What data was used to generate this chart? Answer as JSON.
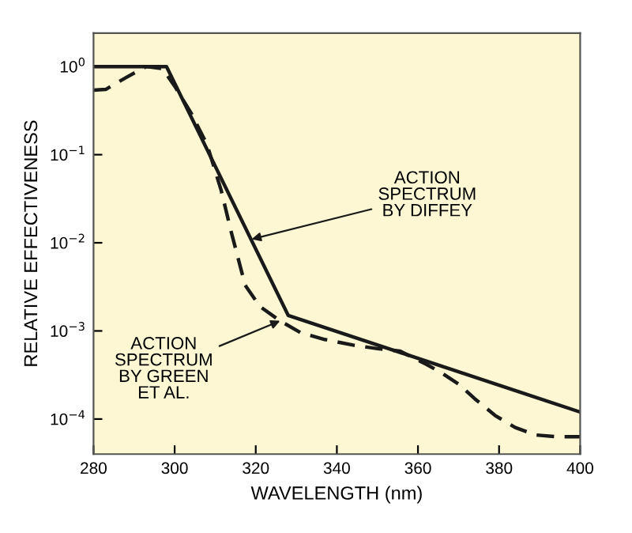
{
  "chart_data": {
    "type": "line",
    "xlabel": "WAVELENGTH (nm)",
    "ylabel": "RELATIVE EFFECTIVENESS",
    "series": [
      {
        "color": "#1a1a1a",
        "line_style": "solid",
        "x": [
          280,
          298,
          328,
          400
        ],
        "values": [
          1,
          1,
          0.0015,
          0.00012
        ]
      },
      {
        "color": "#1a1a1a",
        "line_style": "dashed",
        "x": [
          280,
          283,
          288,
          293,
          297,
          300,
          304,
          308,
          311.5,
          314,
          317.4,
          321,
          326,
          331,
          337,
          344,
          350,
          355.6,
          362,
          366,
          370,
          374,
          379,
          384,
          389,
          394,
          400
        ],
        "values": [
          0.54,
          0.55,
          0.75,
          1,
          0.95,
          0.6,
          0.3,
          0.13,
          0.039,
          0.013,
          0.0033,
          0.0019,
          0.0013,
          0.00096,
          0.0008,
          0.00069,
          0.00063,
          0.00059,
          0.00042,
          0.00033,
          0.00025,
          0.00017,
          0.00011,
          8e-05,
          6.6e-05,
          6.3e-05,
          6.3e-05
        ]
      }
    ],
    "annotations": [
      {
        "text": "ACTION\nSPECTRUM\nBY DIFFEY",
        "x": 319,
        "y": 0.011
      },
      {
        "text": "ACTION\nSPECTRUM\nBY GREEN\nET AL.",
        "x": 326,
        "y": 0.0013
      }
    ],
    "xlim": [
      280,
      400
    ],
    "xticks": [
      280,
      300,
      320,
      340,
      360,
      380,
      400
    ],
    "log": "y",
    "ylim": [
      4e-05,
      2.4
    ],
    "yticks": [
      {
        "value": 1,
        "label": "10$^{0}$"
      },
      {
        "value": 0.1,
        "label": "10$^{−1}$"
      },
      {
        "value": 0.01,
        "label": "10$^{−2}$"
      },
      {
        "value": 0.001,
        "label": "10$^{−3}$"
      },
      {
        "value": 0.0001,
        "label": "10$^{−4}$"
      }
    ],
    "grid": false,
    "legend": false
  }
}
